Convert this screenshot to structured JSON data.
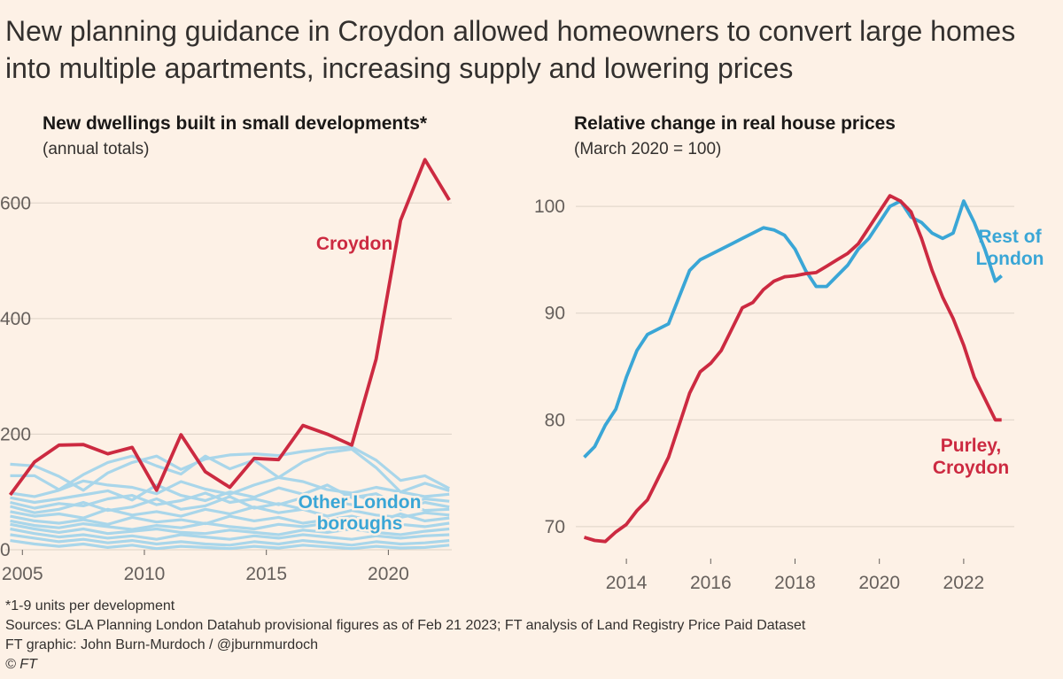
{
  "headline": "New planning guidance in Croydon allowed homeowners to convert large homes into multiple apartments, increasing supply and lowering prices",
  "footer": {
    "note": "*1-9 units per development",
    "sources": "Sources: GLA Planning London Datahub provisional figures as of Feb 21 2023; FT analysis of Land Registry Price Paid Dataset",
    "credit": "FT graphic: John Burn-Murdoch / @jburnmurdoch",
    "copyright": "© FT"
  },
  "colors": {
    "background": "#fdf1e6",
    "croydon": "#cc2a41",
    "london": "#3aa6d6",
    "london_light": "#a9d6ea",
    "grid": "#ddd2c7"
  },
  "chart_data": [
    {
      "type": "line",
      "title": "New dwellings built in small developments*",
      "subtitle": "(annual totals)",
      "xlabel": "",
      "ylabel": "",
      "xlim": [
        2004.3,
        2022.6
      ],
      "ylim": [
        0,
        700
      ],
      "x_ticks": [
        2005,
        2010,
        2015,
        2020
      ],
      "y_ticks": [
        0,
        200,
        400,
        600
      ],
      "grid": true,
      "series": [
        {
          "name": "Croydon",
          "role": "highlight",
          "x": [
            2004.5,
            2005.5,
            2006.5,
            2007.5,
            2008.5,
            2009.5,
            2010.5,
            2011.5,
            2012.5,
            2013.5,
            2014.5,
            2015.5,
            2016.5,
            2017.5,
            2018.5,
            2019.5,
            2020.5,
            2021.5,
            2022.5
          ],
          "values": [
            95,
            152,
            181,
            182,
            166,
            177,
            103,
            199,
            135,
            108,
            158,
            156,
            215,
            200,
            181,
            330,
            570,
            675,
            605
          ]
        },
        {
          "name": "",
          "role": "other",
          "x": [
            2004.5,
            2005.5,
            2006.5,
            2007.5,
            2008.5,
            2009.5,
            2010.5,
            2011.5,
            2012.5,
            2013.5,
            2014.5,
            2015.5,
            2016.5,
            2017.5,
            2018.5,
            2019.5,
            2020.5,
            2021.5,
            2022.5
          ],
          "values": [
            148,
            145,
            127,
            103,
            133,
            151,
            162,
            139,
            157,
            164,
            166,
            163,
            170,
            175,
            178,
            155,
            120,
            128,
            106
          ]
        },
        {
          "name": "",
          "role": "other",
          "x": [
            2004.5,
            2005.5,
            2006.5,
            2007.5,
            2008.5,
            2009.5,
            2010.5,
            2011.5,
            2012.5,
            2013.5,
            2014.5,
            2015.5,
            2016.5,
            2017.5,
            2018.5,
            2019.5,
            2020.5,
            2021.5,
            2022.5
          ],
          "values": [
            128,
            128,
            104,
            130,
            151,
            162,
            145,
            131,
            162,
            140,
            155,
            125,
            152,
            168,
            174,
            142,
            100,
            115,
            102
          ]
        },
        {
          "name": "",
          "role": "other",
          "x": [
            2004.5,
            2005.5,
            2006.5,
            2007.5,
            2008.5,
            2009.5,
            2010.5,
            2011.5,
            2012.5,
            2013.5,
            2014.5,
            2015.5,
            2016.5,
            2017.5,
            2018.5,
            2019.5,
            2020.5,
            2021.5,
            2022.5
          ],
          "values": [
            98,
            92,
            103,
            119,
            112,
            108,
            97,
            118,
            105,
            96,
            112,
            125,
            118,
            104,
            98,
            108,
            100,
            92,
            96
          ]
        },
        {
          "name": "",
          "role": "other",
          "x": [
            2004.5,
            2005.5,
            2006.5,
            2007.5,
            2008.5,
            2009.5,
            2010.5,
            2011.5,
            2012.5,
            2013.5,
            2014.5,
            2015.5,
            2016.5,
            2017.5,
            2018.5,
            2019.5,
            2020.5,
            2021.5,
            2022.5
          ],
          "values": [
            90,
            82,
            88,
            95,
            102,
            86,
            112,
            94,
            85,
            100,
            91,
            107,
            96,
            112,
            90,
            97,
            76,
            88,
            84
          ]
        },
        {
          "name": "",
          "role": "other",
          "x": [
            2004.5,
            2005.5,
            2006.5,
            2007.5,
            2008.5,
            2009.5,
            2010.5,
            2011.5,
            2012.5,
            2013.5,
            2014.5,
            2015.5,
            2016.5,
            2017.5,
            2018.5,
            2019.5,
            2020.5,
            2021.5,
            2022.5
          ],
          "values": [
            82,
            72,
            80,
            76,
            88,
            94,
            78,
            85,
            98,
            82,
            88,
            78,
            90,
            83,
            96,
            84,
            70,
            82,
            74
          ]
        },
        {
          "name": "",
          "role": "other",
          "x": [
            2004.5,
            2005.5,
            2006.5,
            2007.5,
            2008.5,
            2009.5,
            2010.5,
            2011.5,
            2012.5,
            2013.5,
            2014.5,
            2015.5,
            2016.5,
            2017.5,
            2018.5,
            2019.5,
            2020.5,
            2021.5,
            2022.5
          ],
          "values": [
            75,
            64,
            70,
            82,
            68,
            74,
            88,
            70,
            76,
            92,
            72,
            80,
            70,
            86,
            78,
            72,
            82,
            68,
            70
          ]
        },
        {
          "name": "",
          "role": "other",
          "x": [
            2004.5,
            2005.5,
            2006.5,
            2007.5,
            2008.5,
            2009.5,
            2010.5,
            2011.5,
            2012.5,
            2013.5,
            2014.5,
            2015.5,
            2016.5,
            2017.5,
            2018.5,
            2019.5,
            2020.5,
            2021.5,
            2022.5
          ],
          "values": [
            66,
            58,
            62,
            55,
            70,
            60,
            66,
            58,
            70,
            62,
            74,
            64,
            70,
            58,
            68,
            60,
            56,
            64,
            60
          ]
        },
        {
          "name": "",
          "role": "other",
          "x": [
            2004.5,
            2005.5,
            2006.5,
            2007.5,
            2008.5,
            2009.5,
            2010.5,
            2011.5,
            2012.5,
            2013.5,
            2014.5,
            2015.5,
            2016.5,
            2017.5,
            2018.5,
            2019.5,
            2020.5,
            2021.5,
            2022.5
          ],
          "values": [
            58,
            50,
            46,
            52,
            44,
            56,
            48,
            52,
            45,
            58,
            50,
            56,
            46,
            52,
            58,
            48,
            62,
            50,
            55
          ]
        },
        {
          "name": "",
          "role": "other",
          "x": [
            2004.5,
            2005.5,
            2006.5,
            2007.5,
            2008.5,
            2009.5,
            2010.5,
            2011.5,
            2012.5,
            2013.5,
            2014.5,
            2015.5,
            2016.5,
            2017.5,
            2018.5,
            2019.5,
            2020.5,
            2021.5,
            2022.5
          ],
          "values": [
            50,
            42,
            38,
            45,
            40,
            35,
            42,
            38,
            46,
            40,
            36,
            44,
            40,
            46,
            42,
            38,
            44,
            40,
            46
          ]
        },
        {
          "name": "",
          "role": "other",
          "x": [
            2004.5,
            2005.5,
            2006.5,
            2007.5,
            2008.5,
            2009.5,
            2010.5,
            2011.5,
            2012.5,
            2013.5,
            2014.5,
            2015.5,
            2016.5,
            2017.5,
            2018.5,
            2019.5,
            2020.5,
            2021.5,
            2022.5
          ],
          "values": [
            44,
            36,
            30,
            36,
            28,
            32,
            36,
            30,
            28,
            34,
            30,
            26,
            34,
            30,
            36,
            30,
            26,
            32,
            36
          ]
        },
        {
          "name": "",
          "role": "other",
          "x": [
            2004.5,
            2005.5,
            2006.5,
            2007.5,
            2008.5,
            2009.5,
            2010.5,
            2011.5,
            2012.5,
            2013.5,
            2014.5,
            2015.5,
            2016.5,
            2017.5,
            2018.5,
            2019.5,
            2020.5,
            2021.5,
            2022.5
          ],
          "values": [
            36,
            28,
            22,
            26,
            20,
            24,
            18,
            26,
            22,
            18,
            24,
            20,
            26,
            22,
            18,
            24,
            20,
            24,
            26
          ]
        },
        {
          "name": "",
          "role": "other",
          "x": [
            2004.5,
            2005.5,
            2006.5,
            2007.5,
            2008.5,
            2009.5,
            2010.5,
            2011.5,
            2012.5,
            2013.5,
            2014.5,
            2015.5,
            2016.5,
            2017.5,
            2018.5,
            2019.5,
            2020.5,
            2021.5,
            2022.5
          ],
          "values": [
            26,
            20,
            14,
            18,
            12,
            16,
            10,
            14,
            10,
            8,
            14,
            10,
            16,
            12,
            8,
            14,
            10,
            12,
            16
          ]
        },
        {
          "name": "",
          "role": "other",
          "x": [
            2004.5,
            2005.5,
            2006.5,
            2007.5,
            2008.5,
            2009.5,
            2010.5,
            2011.5,
            2012.5,
            2013.5,
            2014.5,
            2015.5,
            2016.5,
            2017.5,
            2018.5,
            2019.5,
            2020.5,
            2021.5,
            2022.5
          ],
          "values": [
            16,
            10,
            6,
            10,
            4,
            8,
            2,
            6,
            4,
            2,
            6,
            3,
            8,
            5,
            2,
            6,
            3,
            4,
            8
          ]
        }
      ],
      "annotations": [
        {
          "text": "Croydon",
          "series": "Croydon"
        },
        {
          "text_lines": [
            "Other London",
            "boroughs"
          ],
          "series": "Other London boroughs"
        }
      ]
    },
    {
      "type": "line",
      "title": "Relative change in real house prices",
      "subtitle": "(March 2020 = 100)",
      "xlabel": "",
      "ylabel": "",
      "xlim": [
        2012.8,
        2023.2
      ],
      "ylim": [
        67,
        103
      ],
      "x_ticks": [
        2014,
        2016,
        2018,
        2020,
        2022
      ],
      "y_ticks": [
        70,
        80,
        90,
        100
      ],
      "grid": true,
      "series": [
        {
          "name": "Rest of London",
          "x": [
            2013.0,
            2013.25,
            2013.5,
            2013.75,
            2014.0,
            2014.25,
            2014.5,
            2014.75,
            2015.0,
            2015.25,
            2015.5,
            2015.75,
            2016.0,
            2016.25,
            2016.5,
            2016.75,
            2017.0,
            2017.25,
            2017.5,
            2017.75,
            2018.0,
            2018.25,
            2018.5,
            2018.75,
            2019.0,
            2019.25,
            2019.5,
            2019.75,
            2020.0,
            2020.25,
            2020.5,
            2020.75,
            2021.0,
            2021.25,
            2021.5,
            2021.75,
            2022.0,
            2022.25,
            2022.5,
            2022.75,
            2022.9
          ],
          "values": [
            76.5,
            77.5,
            79.5,
            81,
            84,
            86.5,
            88,
            88.5,
            89,
            91.5,
            94,
            95,
            95.5,
            96,
            96.5,
            97,
            97.5,
            98,
            97.8,
            97.3,
            96,
            94,
            92.5,
            92.5,
            93.5,
            94.5,
            96,
            97,
            98.5,
            100,
            100.5,
            99,
            98.5,
            97.5,
            97,
            97.5,
            100.5,
            98.5,
            96,
            93,
            93.5
          ]
        },
        {
          "name": "Purley, Croydon",
          "x": [
            2013.0,
            2013.25,
            2013.5,
            2013.75,
            2014.0,
            2014.25,
            2014.5,
            2014.75,
            2015.0,
            2015.25,
            2015.5,
            2015.75,
            2016.0,
            2016.25,
            2016.5,
            2016.75,
            2017.0,
            2017.25,
            2017.5,
            2017.75,
            2018.0,
            2018.25,
            2018.5,
            2018.75,
            2019.0,
            2019.25,
            2019.5,
            2019.75,
            2020.0,
            2020.25,
            2020.5,
            2020.75,
            2021.0,
            2021.25,
            2021.5,
            2021.75,
            2022.0,
            2022.25,
            2022.5,
            2022.75,
            2022.9
          ],
          "values": [
            69,
            68.7,
            68.6,
            69.5,
            70.2,
            71.5,
            72.5,
            74.5,
            76.5,
            79.5,
            82.5,
            84.5,
            85.3,
            86.5,
            88.5,
            90.5,
            91,
            92.2,
            93,
            93.4,
            93.5,
            93.7,
            93.8,
            94.4,
            95,
            95.6,
            96.5,
            98,
            99.5,
            101,
            100.5,
            99.5,
            97,
            94,
            91.5,
            89.5,
            87,
            84,
            82,
            80,
            80
          ]
        }
      ],
      "annotations": [
        {
          "text_lines": [
            "Rest of",
            "London"
          ],
          "series": "Rest of London"
        },
        {
          "text_lines": [
            "Purley,",
            "Croydon"
          ],
          "series": "Purley, Croydon"
        }
      ]
    }
  ]
}
